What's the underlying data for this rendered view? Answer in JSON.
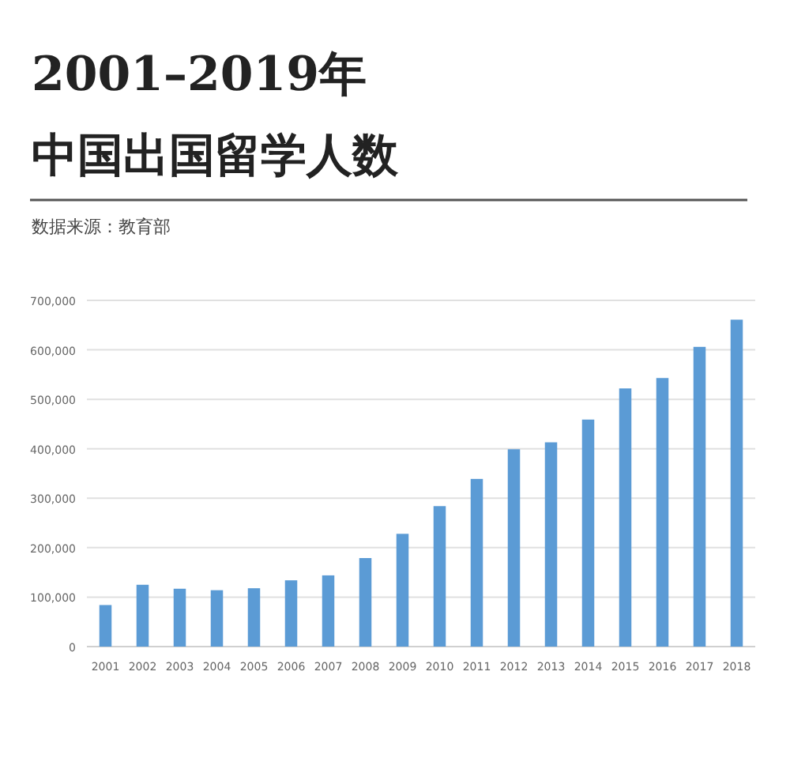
{
  "chart_data": {
    "type": "bar",
    "title": "2001–2019年",
    "subtitle": "中国出国留学人数",
    "annotations": [
      "数据来源：教育部"
    ],
    "categories": [
      "2001",
      "2002",
      "2003",
      "2004",
      "2005",
      "2006",
      "2007",
      "2008",
      "2009",
      "2010",
      "2011",
      "2012",
      "2013",
      "2014",
      "2015",
      "2016",
      "2017",
      "2018"
    ],
    "values": [
      84000,
      125000,
      117000,
      114000,
      118000,
      134000,
      144000,
      179000,
      228000,
      284000,
      339000,
      399000,
      413000,
      459000,
      522000,
      543000,
      606000,
      661000
    ],
    "color": "#5b9bd5",
    "ylim": [
      0,
      700000
    ],
    "yticks": [
      0,
      {
        "value": 100000,
        "label": "100,000"
      },
      {
        "value": 200000,
        "label": "200,000"
      },
      {
        "value": 300000,
        "label": "300,000"
      },
      {
        "value": 400000,
        "label": "400,000"
      },
      {
        "value": 500000,
        "label": "500,000"
      },
      {
        "value": 600000,
        "label": "600,000"
      },
      {
        "value": 700000,
        "label": "700,000"
      }
    ],
    "grid": "y"
  }
}
